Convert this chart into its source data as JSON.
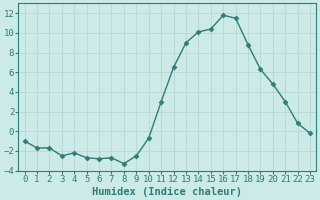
{
  "x": [
    0,
    1,
    2,
    3,
    4,
    5,
    6,
    7,
    8,
    9,
    10,
    11,
    12,
    13,
    14,
    15,
    16,
    17,
    18,
    19,
    20,
    21,
    22,
    23
  ],
  "y": [
    -1.0,
    -1.7,
    -1.7,
    -2.5,
    -2.2,
    -2.7,
    -2.8,
    -2.7,
    -3.3,
    -2.5,
    -0.7,
    3.0,
    6.5,
    9.0,
    10.1,
    10.4,
    11.8,
    11.5,
    8.8,
    6.3,
    4.8,
    3.0,
    0.8,
    -0.2
  ],
  "line_color": "#2d7d78",
  "marker": "D",
  "marker_size": 2.5,
  "linewidth": 1.0,
  "background_color": "#cceae7",
  "grid_color": "#b8d8d4",
  "xlabel": "Humidex (Indice chaleur)",
  "ylim": [
    -4,
    13
  ],
  "xlim": [
    -0.5,
    23.5
  ],
  "yticks": [
    -4,
    -2,
    0,
    2,
    4,
    6,
    8,
    10,
    12
  ],
  "xticks": [
    0,
    1,
    2,
    3,
    4,
    5,
    6,
    7,
    8,
    9,
    10,
    11,
    12,
    13,
    14,
    15,
    16,
    17,
    18,
    19,
    20,
    21,
    22,
    23
  ],
  "xlabel_fontsize": 7.5,
  "tick_fontsize": 6.5,
  "spine_color": "#2d7d78"
}
